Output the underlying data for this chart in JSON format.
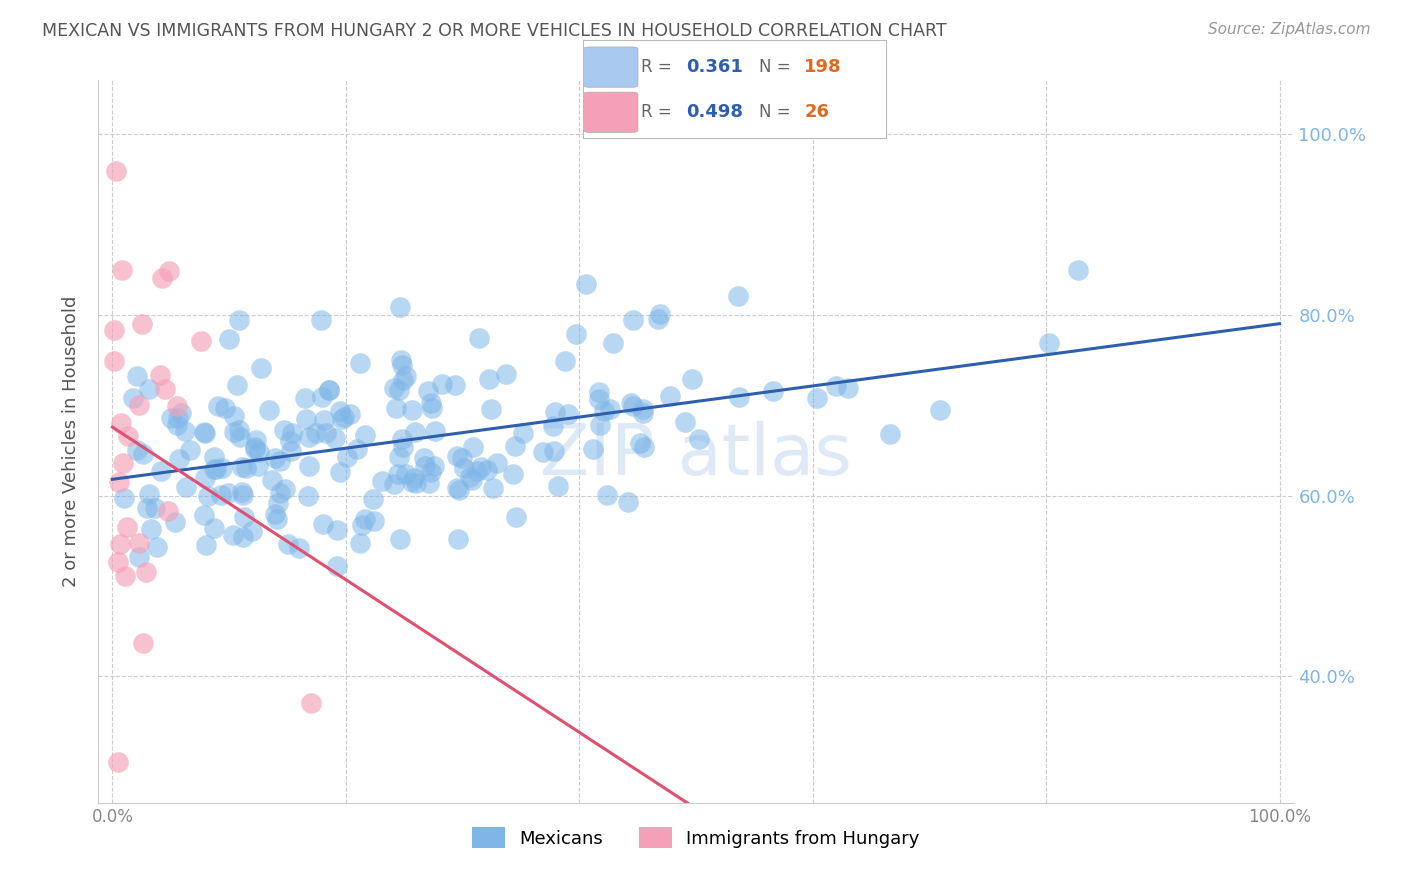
{
  "title": "MEXICAN VS IMMIGRANTS FROM HUNGARY 2 OR MORE VEHICLES IN HOUSEHOLD CORRELATION CHART",
  "source": "Source: ZipAtlas.com",
  "ylabel": "2 or more Vehicles in Household",
  "watermark": "ZIP atlas",
  "blue_R": 0.361,
  "blue_N": 198,
  "pink_R": 0.498,
  "pink_N": 26,
  "blue_scatter_color": "#7EB6E8",
  "pink_scatter_color": "#F4A0B8",
  "blue_line_color": "#2E5FAF",
  "pink_line_color": "#E05070",
  "grid_color": "#CCCCCC",
  "right_tick_color": "#7EB6E8",
  "title_color": "#555555",
  "ylabel_color": "#555555",
  "source_color": "#999999",
  "watermark_color": "#C5D8F0",
  "legend_blue_box": "#A8C8F0",
  "legend_pink_box": "#F4A0B8",
  "legend_R_color": "#2E5FAF",
  "legend_N_color": "#E06820",
  "seed": 42
}
